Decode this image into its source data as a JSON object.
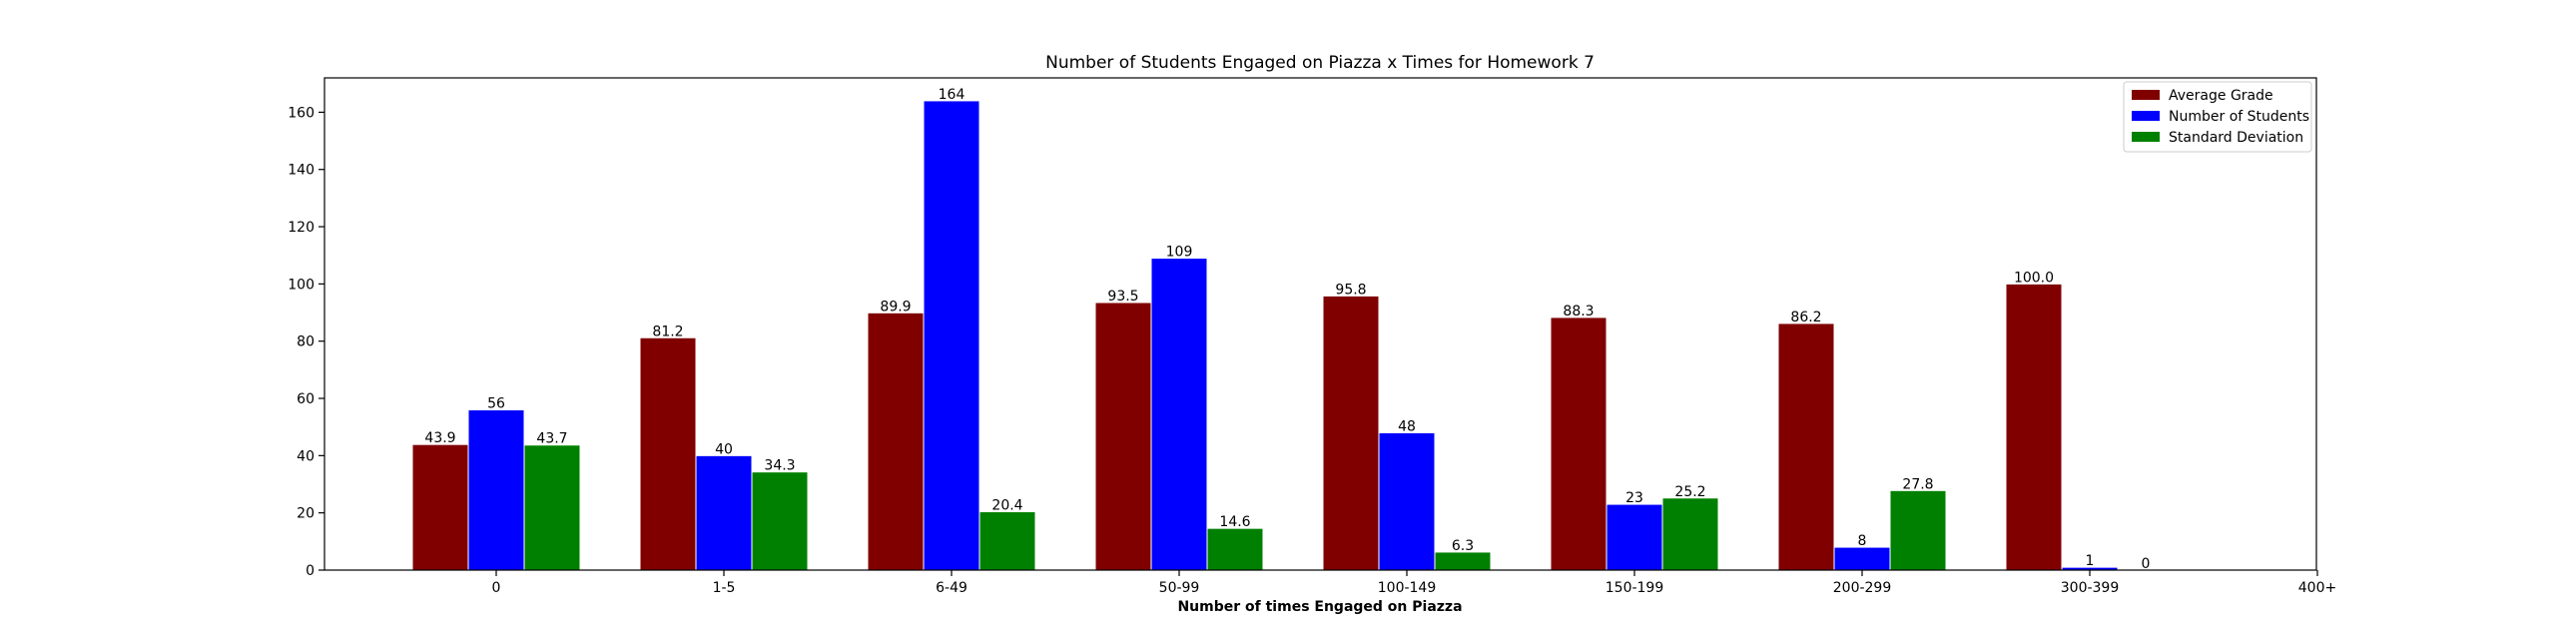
{
  "chart_data": {
    "type": "bar",
    "title": "Number of Students Engaged on Piazza x Times for Homework 7",
    "xlabel": "Number of times Engaged on Piazza",
    "ylabel": "",
    "tick_labels": [
      "0",
      "1-5",
      "6-49",
      "50-99",
      "100-149",
      "150-199",
      "200-299",
      "300-399",
      "400+"
    ],
    "categories": [
      "0",
      "1-5",
      "6-49",
      "50-99",
      "100-149",
      "150-199",
      "200-299",
      "300-399"
    ],
    "ylim": [
      0,
      172
    ],
    "yticks": [
      0,
      20,
      40,
      60,
      80,
      100,
      120,
      140,
      160
    ],
    "legend_position": "top-right",
    "grid": false,
    "series": [
      {
        "name": "Average Grade",
        "color": "#800000",
        "values": [
          43.9,
          81.2,
          89.9,
          93.5,
          95.8,
          88.3,
          86.2,
          100.0
        ],
        "labels": [
          "43.9",
          "81.2",
          "89.9",
          "93.5",
          "95.8",
          "88.3",
          "86.2",
          "100.0"
        ]
      },
      {
        "name": "Number of Students",
        "color": "#0000ff",
        "values": [
          56,
          40,
          164,
          109,
          48,
          23,
          8,
          1
        ],
        "labels": [
          "56",
          "40",
          "164",
          "109",
          "48",
          "23",
          "8",
          "1"
        ]
      },
      {
        "name": "Standard Deviation",
        "color": "#008000",
        "values": [
          43.7,
          34.3,
          20.4,
          14.6,
          6.3,
          25.2,
          27.8,
          0
        ],
        "labels": [
          "43.7",
          "34.3",
          "20.4",
          "14.6",
          "6.3",
          "25.2",
          "27.8",
          "0"
        ]
      }
    ]
  }
}
